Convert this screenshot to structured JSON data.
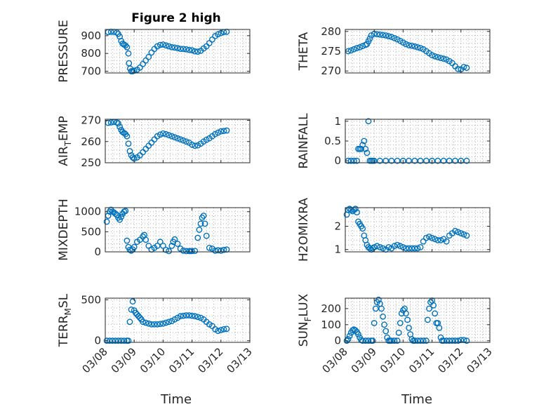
{
  "figure": {
    "title": "Figure 2 high",
    "xlabel": "Time"
  },
  "style": {
    "marker_color": "#0072BD",
    "grid_color": "#b0b0b0",
    "axis_color": "#262626"
  },
  "x_axis": {
    "tick_labels": [
      "03/08",
      "03/09",
      "03/10",
      "03/11",
      "03/12",
      "03/13"
    ],
    "range_days": [
      8,
      13
    ]
  },
  "chart_data": [
    {
      "type": "scatter",
      "ylabel": "PRESSURE",
      "ylim": [
        690,
        935
      ],
      "yticks": [
        700,
        800,
        900
      ],
      "grid": "on",
      "x": [
        8.1,
        8.2,
        8.3,
        8.4,
        8.45,
        8.5,
        8.55,
        8.6,
        8.65,
        8.7,
        8.75,
        8.8,
        8.82,
        8.86,
        8.9,
        8.95,
        9.0,
        9.1,
        9.2,
        9.3,
        9.4,
        9.5,
        9.6,
        9.7,
        9.8,
        9.9,
        10.0,
        10.1,
        10.2,
        10.3,
        10.4,
        10.5,
        10.6,
        10.7,
        10.8,
        10.9,
        11.0,
        11.1,
        11.2,
        11.3,
        11.4,
        11.5,
        11.6,
        11.7,
        11.8,
        11.9,
        12.0,
        12.1,
        12.2
      ],
      "y": [
        920,
        922,
        921,
        918,
        910,
        895,
        870,
        855,
        850,
        845,
        835,
        800,
        745,
        715,
        700,
        700,
        703,
        708,
        720,
        740,
        760,
        780,
        805,
        825,
        840,
        848,
        850,
        845,
        840,
        835,
        833,
        830,
        826,
        825,
        823,
        820,
        818,
        812,
        810,
        815,
        828,
        840,
        858,
        878,
        898,
        908,
        915,
        920,
        922
      ]
    },
    {
      "type": "scatter",
      "ylabel": "THETA",
      "ylim": [
        269.5,
        280.5
      ],
      "yticks": [
        270,
        275,
        280
      ],
      "grid": "on",
      "x": [
        8.1,
        8.2,
        8.3,
        8.4,
        8.5,
        8.6,
        8.7,
        8.75,
        8.8,
        8.85,
        8.9,
        9.0,
        9.1,
        9.2,
        9.3,
        9.4,
        9.5,
        9.6,
        9.7,
        9.8,
        9.9,
        10.0,
        10.1,
        10.2,
        10.3,
        10.4,
        10.5,
        10.6,
        10.7,
        10.8,
        10.9,
        11.0,
        11.1,
        11.2,
        11.3,
        11.4,
        11.5,
        11.6,
        11.7,
        11.8,
        11.9,
        12.0,
        12.1,
        12.2
      ],
      "y": [
        275,
        275.2,
        275.5,
        275.8,
        276,
        276.3,
        276.6,
        276.8,
        277.5,
        278.2,
        279,
        279.4,
        279.3,
        279.2,
        279.1,
        279,
        278.8,
        278.6,
        278.3,
        278,
        277.6,
        277.2,
        276.8,
        276.5,
        276.4,
        276.2,
        276,
        275.8,
        275.5,
        275,
        274.5,
        274,
        273.7,
        273.5,
        273.3,
        273.1,
        272.9,
        272.5,
        272,
        271.2,
        270.5,
        270.4,
        271,
        270.8
      ]
    },
    {
      "type": "scatter",
      "ylabel": "AIR_TEMP",
      "ylim": [
        250,
        270.5
      ],
      "yticks": [
        250,
        260,
        270
      ],
      "grid": "on",
      "x": [
        8.1,
        8.2,
        8.3,
        8.4,
        8.45,
        8.5,
        8.55,
        8.6,
        8.65,
        8.7,
        8.75,
        8.8,
        8.85,
        8.9,
        8.95,
        9.0,
        9.1,
        9.2,
        9.3,
        9.4,
        9.5,
        9.6,
        9.7,
        9.8,
        9.9,
        10.0,
        10.1,
        10.2,
        10.3,
        10.4,
        10.5,
        10.6,
        10.7,
        10.8,
        10.9,
        11.0,
        11.1,
        11.2,
        11.3,
        11.4,
        11.5,
        11.6,
        11.7,
        11.8,
        11.9,
        12.0,
        12.1,
        12.2
      ],
      "y": [
        268.8,
        269,
        269.2,
        269,
        268.5,
        267,
        265.5,
        264.5,
        264,
        263.5,
        262.5,
        259,
        255.5,
        253.5,
        252.5,
        252,
        252.5,
        253.5,
        255,
        256.5,
        258,
        259.5,
        261,
        262.5,
        263.3,
        263.8,
        263.5,
        263,
        262.5,
        262,
        261.5,
        261,
        260.5,
        260,
        259.5,
        258.5,
        258,
        258.2,
        259,
        260,
        260.8,
        261.5,
        262.5,
        263.5,
        264.2,
        264.8,
        265,
        265.2
      ]
    },
    {
      "type": "scatter",
      "ylabel": "RAINFALL",
      "ylim": [
        -0.05,
        1.05
      ],
      "yticks": [
        0,
        0.5,
        1
      ],
      "grid": "on",
      "x": [
        8.1,
        8.2,
        8.3,
        8.4,
        8.45,
        8.5,
        8.55,
        8.6,
        8.65,
        8.7,
        8.75,
        8.8,
        8.85,
        8.9,
        8.95,
        9.0,
        9.2,
        9.4,
        9.6,
        9.8,
        10.0,
        10.2,
        10.4,
        10.6,
        10.8,
        11.0,
        11.2,
        11.4,
        11.6,
        11.8,
        12.0,
        12.2
      ],
      "y": [
        0,
        0,
        0,
        0,
        0.3,
        0.3,
        0.3,
        0.4,
        0.5,
        0.3,
        0.2,
        1,
        0,
        0,
        0,
        0,
        0,
        0,
        0,
        0,
        0,
        0,
        0,
        0,
        0,
        0,
        0,
        0,
        0,
        0,
        0,
        0
      ]
    },
    {
      "type": "scatter",
      "ylabel": "MIXDEPTH",
      "ylim": [
        0,
        1100
      ],
      "yticks": [
        0,
        500,
        1000
      ],
      "grid": "on",
      "x": [
        8.05,
        8.1,
        8.15,
        8.2,
        8.25,
        8.3,
        8.35,
        8.4,
        8.45,
        8.5,
        8.55,
        8.6,
        8.65,
        8.7,
        8.75,
        8.8,
        8.85,
        8.9,
        8.95,
        9.0,
        9.1,
        9.2,
        9.3,
        9.35,
        9.4,
        9.5,
        9.6,
        9.7,
        9.8,
        9.9,
        10.0,
        10.1,
        10.2,
        10.3,
        10.35,
        10.4,
        10.5,
        10.6,
        10.7,
        10.8,
        10.9,
        10.95,
        11.0,
        11.1,
        11.2,
        11.25,
        11.3,
        11.35,
        11.4,
        11.45,
        11.5,
        11.6,
        11.7,
        11.8,
        11.9,
        12.0,
        12.1,
        12.2
      ],
      "y": [
        750,
        900,
        1000,
        1050,
        1000,
        980,
        950,
        920,
        850,
        800,
        870,
        950,
        1000,
        1020,
        280,
        120,
        50,
        30,
        60,
        120,
        250,
        300,
        380,
        420,
        300,
        150,
        60,
        100,
        150,
        250,
        150,
        50,
        20,
        150,
        250,
        310,
        200,
        80,
        30,
        20,
        20,
        20,
        20,
        25,
        350,
        550,
        700,
        850,
        900,
        700,
        400,
        100,
        80,
        30,
        40,
        30,
        50,
        60
      ]
    },
    {
      "type": "scatter",
      "ylabel": "H2OMIXRA",
      "ylim": [
        0.9,
        2.8
      ],
      "yticks": [
        1,
        2
      ],
      "grid": "on",
      "x": [
        8.05,
        8.1,
        8.15,
        8.2,
        8.25,
        8.3,
        8.35,
        8.4,
        8.45,
        8.5,
        8.55,
        8.6,
        8.65,
        8.7,
        8.75,
        8.8,
        8.85,
        8.9,
        8.95,
        9.0,
        9.1,
        9.2,
        9.3,
        9.4,
        9.5,
        9.6,
        9.7,
        9.8,
        9.9,
        10.0,
        10.1,
        10.2,
        10.3,
        10.4,
        10.5,
        10.6,
        10.7,
        10.8,
        10.9,
        11.0,
        11.1,
        11.2,
        11.3,
        11.4,
        11.5,
        11.6,
        11.7,
        11.8,
        11.9,
        12.0,
        12.1,
        12.2
      ],
      "y": [
        2.5,
        2.7,
        2.75,
        2.7,
        2.65,
        2.7,
        2.75,
        2.6,
        2.2,
        2.1,
        2.0,
        1.9,
        1.6,
        1.4,
        1.2,
        1.1,
        1.05,
        1.0,
        1.05,
        1.1,
        1.15,
        1.1,
        1.05,
        1.0,
        1.1,
        1.05,
        1.15,
        1.2,
        1.15,
        1.1,
        1.05,
        1.05,
        1.05,
        1.05,
        1.05,
        1.1,
        1.35,
        1.5,
        1.55,
        1.5,
        1.45,
        1.4,
        1.4,
        1.45,
        1.35,
        1.6,
        1.7,
        1.8,
        1.75,
        1.7,
        1.65,
        1.6
      ]
    },
    {
      "type": "scatter",
      "ylabel": "TERR_MSL",
      "ylim": [
        -20,
        520
      ],
      "yticks": [
        0,
        500
      ],
      "grid": "on",
      "x": [
        8.05,
        8.15,
        8.25,
        8.35,
        8.45,
        8.55,
        8.65,
        8.75,
        8.8,
        8.85,
        8.9,
        8.95,
        9.0,
        9.05,
        9.1,
        9.15,
        9.2,
        9.25,
        9.3,
        9.4,
        9.5,
        9.6,
        9.7,
        9.8,
        9.9,
        10.0,
        10.1,
        10.2,
        10.3,
        10.4,
        10.5,
        10.6,
        10.7,
        10.8,
        10.9,
        11.0,
        11.1,
        11.2,
        11.3,
        11.4,
        11.5,
        11.6,
        11.7,
        11.8,
        11.9,
        12.0,
        12.1,
        12.2
      ],
      "y": [
        0,
        0,
        0,
        0,
        0,
        0,
        0,
        0,
        0,
        230,
        380,
        480,
        370,
        340,
        320,
        300,
        280,
        260,
        230,
        220,
        210,
        200,
        200,
        200,
        205,
        210,
        220,
        230,
        240,
        260,
        280,
        300,
        305,
        310,
        310,
        305,
        300,
        290,
        280,
        260,
        230,
        200,
        180,
        140,
        120,
        130,
        140,
        145
      ]
    },
    {
      "type": "scatter",
      "ylabel": "SUN_FLUX",
      "ylim": [
        -10,
        265
      ],
      "yticks": [
        0,
        100,
        200
      ],
      "grid": "on",
      "x": [
        8.05,
        8.1,
        8.15,
        8.2,
        8.25,
        8.3,
        8.35,
        8.4,
        8.45,
        8.5,
        8.55,
        8.6,
        8.7,
        8.8,
        8.9,
        8.95,
        9.0,
        9.05,
        9.1,
        9.15,
        9.2,
        9.25,
        9.3,
        9.35,
        9.4,
        9.45,
        9.5,
        9.55,
        9.6,
        9.7,
        9.8,
        9.85,
        9.9,
        9.95,
        10.0,
        10.05,
        10.1,
        10.15,
        10.2,
        10.25,
        10.3,
        10.35,
        10.4,
        10.5,
        10.6,
        10.7,
        10.8,
        10.85,
        10.9,
        10.95,
        11.0,
        11.05,
        11.1,
        11.15,
        11.2,
        11.25,
        11.3,
        11.35,
        11.4,
        11.5,
        11.6,
        11.7,
        11.8,
        11.9,
        12.0,
        12.1,
        12.2
      ],
      "y": [
        0,
        10,
        30,
        50,
        65,
        70,
        65,
        55,
        40,
        20,
        5,
        0,
        0,
        0,
        0,
        0,
        110,
        200,
        240,
        255,
        230,
        200,
        150,
        100,
        60,
        20,
        0,
        0,
        0,
        0,
        0,
        50,
        110,
        170,
        190,
        200,
        170,
        130,
        80,
        40,
        10,
        0,
        0,
        0,
        0,
        0,
        0,
        130,
        200,
        240,
        250,
        220,
        170,
        110,
        110,
        80,
        20,
        0,
        0,
        0,
        0,
        0,
        0,
        0,
        5,
        5,
        0
      ]
    }
  ]
}
